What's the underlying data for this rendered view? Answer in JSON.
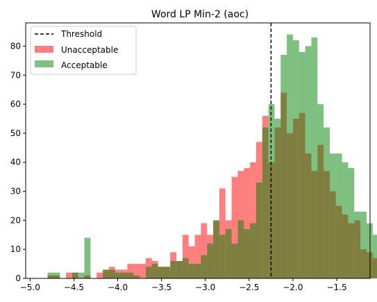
{
  "chart_data": {
    "type": "bar",
    "title": "Word LP Min-2 (aoc)",
    "xlabel": "",
    "ylabel": "",
    "xlim": [
      -5.05,
      -1.12
    ],
    "ylim": [
      0,
      88
    ],
    "x_ticks": [
      -5.0,
      -4.5,
      -4.0,
      -3.5,
      -3.0,
      -2.5,
      -2.0,
      -1.5
    ],
    "x_tick_labels": [
      "−5.0",
      "−4.5",
      "−4.0",
      "−3.5",
      "−3.0",
      "−2.5",
      "−2.0",
      "−1.5"
    ],
    "y_ticks": [
      0,
      10,
      20,
      30,
      40,
      50,
      60,
      70,
      80
    ],
    "y_tick_labels": [
      "0",
      "10",
      "20",
      "30",
      "40",
      "50",
      "60",
      "70",
      "80"
    ],
    "bin_start": -4.8,
    "bin_width": 0.07,
    "threshold": {
      "name": "Threshold",
      "x": -2.25,
      "color": "#000000",
      "style": "dashed"
    },
    "series": [
      {
        "name": "Unacceptable",
        "color": "#ff0000",
        "opacity": 0.5,
        "values": [
          1,
          1,
          0,
          2,
          2,
          0,
          1,
          0,
          2,
          3,
          4,
          3,
          3,
          5,
          5,
          5,
          7,
          6,
          4,
          4,
          9,
          6,
          15,
          11,
          15,
          19,
          15,
          20,
          31,
          20,
          35,
          37,
          38,
          40,
          47,
          56,
          40,
          52,
          64,
          50,
          55,
          57,
          43,
          37,
          46,
          37,
          30,
          25,
          22,
          19,
          20,
          10,
          9,
          7
        ]
      },
      {
        "name": "Acceptable",
        "color": "#008000",
        "opacity": 0.5,
        "values": [
          2,
          2,
          0,
          0,
          2,
          2,
          14,
          0,
          0,
          3,
          3,
          2,
          2,
          2,
          1,
          0,
          4,
          5,
          4,
          4,
          6,
          6,
          7,
          5,
          5,
          8,
          12,
          20,
          15,
          17,
          12,
          20,
          17,
          19,
          33,
          52,
          60,
          55,
          77,
          84,
          82,
          78,
          80,
          83,
          60,
          52,
          43,
          43,
          40,
          38,
          23,
          23,
          19,
          15
        ]
      }
    ],
    "legend": {
      "position": "top-left",
      "entries": [
        "Threshold",
        "Unacceptable",
        "Acceptable"
      ]
    },
    "grid": false
  }
}
